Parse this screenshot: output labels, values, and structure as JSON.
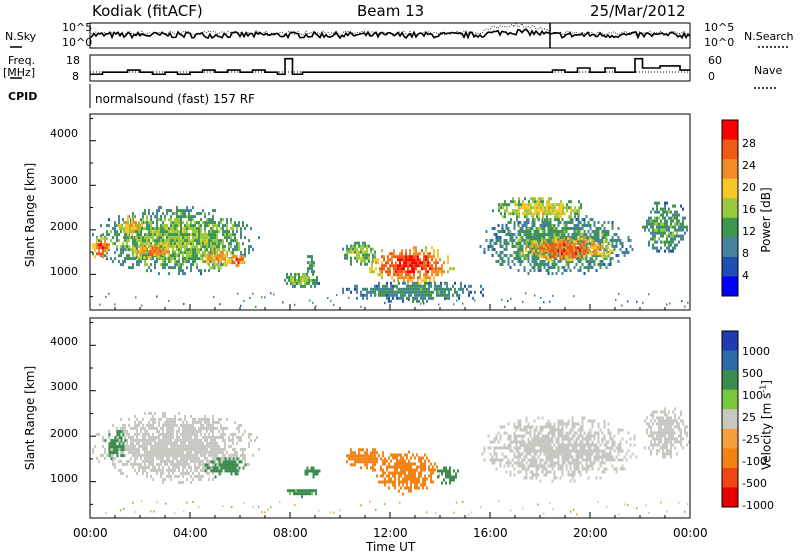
{
  "header": {
    "station": "Kodiak (fitACF)",
    "beam": "Beam 13",
    "date": "25/Mar/2012"
  },
  "status_panel": {
    "nsky_label": "N.Sky",
    "nsearch_label": "N.Search",
    "freq_label": "Freq.",
    "freq_unit": "[MHz]",
    "nave_label": "Nave",
    "cpid_label": "CPID",
    "noise_top_tick": "10^5",
    "noise_bottom_tick": "10^0",
    "freq_ticks": [
      "18",
      "8"
    ],
    "nave_ticks": [
      "60",
      "0"
    ],
    "cpid_text": "normalsound (fast) 157 RF"
  },
  "power_colorbar": {
    "label": "Power [dB]",
    "ticks": [
      "28",
      "24",
      "20",
      "16",
      "12",
      "8",
      "4"
    ],
    "colors": [
      "#ff0000",
      "#f05a14",
      "#f08c28",
      "#f5c828",
      "#9ac83c",
      "#3c9650",
      "#4682a0",
      "#1e50b4",
      "#0000ff"
    ]
  },
  "velocity_colorbar": {
    "label_text": "Velocity [m s",
    "label_sup": "-1",
    "label_close": "]",
    "ticks": [
      "1000",
      "500",
      "100",
      "25",
      "-25",
      "-100",
      "-500",
      "-1000"
    ],
    "colors": [
      "#1e3cb4",
      "#2f6aa8",
      "#3c8c50",
      "#78c83c",
      "#c8c8c0",
      "#f5a03c",
      "#f58214",
      "#f04614",
      "#e60000"
    ]
  },
  "chart_data": {
    "type": "heatmap",
    "x_axis": {
      "label": "Time UT",
      "range_hours": [
        0,
        24
      ],
      "ticks": [
        "00:00",
        "04:00",
        "08:00",
        "12:00",
        "16:00",
        "20:00",
        "00:00"
      ]
    },
    "y_axis": {
      "label": "Slant Range [km]",
      "range_km": [
        200,
        4600
      ],
      "ticks": [
        1000,
        2000,
        3000,
        4000
      ]
    },
    "freq_mhz": [
      [
        0,
        10.6
      ],
      [
        0.5,
        11.4
      ],
      [
        1,
        11.4
      ],
      [
        1.5,
        12.2
      ],
      [
        2,
        11.4
      ],
      [
        2.5,
        10.6
      ],
      [
        3,
        11.4
      ],
      [
        3.5,
        10.6
      ],
      [
        4,
        11.4
      ],
      [
        4.5,
        12.2
      ],
      [
        5,
        11.4
      ],
      [
        5.5,
        12.2
      ],
      [
        6,
        11.4
      ],
      [
        6.5,
        12.2
      ],
      [
        7,
        11.4
      ],
      [
        7.5,
        10.6
      ],
      [
        7.8,
        16.6
      ],
      [
        8.1,
        10.6
      ],
      [
        8.5,
        11.4
      ],
      [
        10,
        11.4
      ],
      [
        12,
        11.4
      ],
      [
        14,
        11.4
      ],
      [
        16,
        11.4
      ],
      [
        18,
        11.4
      ],
      [
        18.5,
        12.2
      ],
      [
        19,
        11.4
      ],
      [
        19.5,
        13.0
      ],
      [
        20,
        11.4
      ],
      [
        20.6,
        13.0
      ],
      [
        21,
        11.4
      ],
      [
        21.8,
        16.6
      ],
      [
        22.1,
        13.0
      ],
      [
        22.8,
        13.8
      ],
      [
        23.6,
        12.2
      ],
      [
        24,
        12.2
      ]
    ],
    "power_blobs": [
      {
        "t": [
          0.0,
          6.8
        ],
        "r": [
          1000,
          2600
        ],
        "p": 14
      },
      {
        "t": [
          0.0,
          0.8
        ],
        "r": [
          1350,
          1900
        ],
        "p": 26
      },
      {
        "t": [
          1.0,
          2.2
        ],
        "r": [
          1800,
          2400
        ],
        "p": 20
      },
      {
        "t": [
          1.5,
          3.5
        ],
        "r": [
          1350,
          1750
        ],
        "p": 24
      },
      {
        "t": [
          4.3,
          5.8
        ],
        "r": [
          1150,
          1650
        ],
        "p": 22
      },
      {
        "t": [
          5.5,
          6.2
        ],
        "r": [
          1200,
          1500
        ],
        "p": 26
      },
      {
        "t": [
          8.6,
          9.0
        ],
        "r": [
          1000,
          1500
        ],
        "p": 12
      },
      {
        "t": [
          7.6,
          9.2
        ],
        "r": [
          700,
          1100
        ],
        "p": 14
      },
      {
        "t": [
          10.0,
          11.5
        ],
        "r": [
          1200,
          1800
        ],
        "p": 14
      },
      {
        "t": [
          11.0,
          14.6
        ],
        "r": [
          800,
          1700
        ],
        "p": 28
      },
      {
        "t": [
          10.0,
          16.0
        ],
        "r": [
          400,
          900
        ],
        "p": 10
      },
      {
        "t": [
          15.5,
          21.8
        ],
        "r": [
          1000,
          2400
        ],
        "p": 12
      },
      {
        "t": [
          17.0,
          21.0
        ],
        "r": [
          1300,
          1900
        ],
        "p": 26
      },
      {
        "t": [
          16.0,
          20.0
        ],
        "r": [
          2200,
          2800
        ],
        "p": 18
      },
      {
        "t": [
          22.0,
          24.0
        ],
        "r": [
          1500,
          2700
        ],
        "p": 12
      }
    ],
    "velocity_blobs": [
      {
        "t": [
          0.0,
          6.8
        ],
        "r": [
          1000,
          2600
        ],
        "v": 0
      },
      {
        "t": [
          0.5,
          1.5
        ],
        "r": [
          1500,
          2200
        ],
        "v": 150
      },
      {
        "t": [
          4.5,
          6.3
        ],
        "r": [
          1100,
          1600
        ],
        "v": 150
      },
      {
        "t": [
          8.5,
          9.2
        ],
        "r": [
          1100,
          1400
        ],
        "v": 120
      },
      {
        "t": [
          7.8,
          9.2
        ],
        "r": [
          700,
          900
        ],
        "v": 100
      },
      {
        "t": [
          10.0,
          11.8
        ],
        "r": [
          1300,
          1800
        ],
        "v": -200
      },
      {
        "t": [
          11.2,
          14.0
        ],
        "r": [
          750,
          1750
        ],
        "v": -150
      },
      {
        "t": [
          13.8,
          14.8
        ],
        "r": [
          950,
          1400
        ],
        "v": 120
      },
      {
        "t": [
          15.5,
          22.0
        ],
        "r": [
          1000,
          2500
        ],
        "v": 0
      },
      {
        "t": [
          22.0,
          24.0
        ],
        "r": [
          1500,
          2700
        ],
        "v": 0
      }
    ]
  }
}
